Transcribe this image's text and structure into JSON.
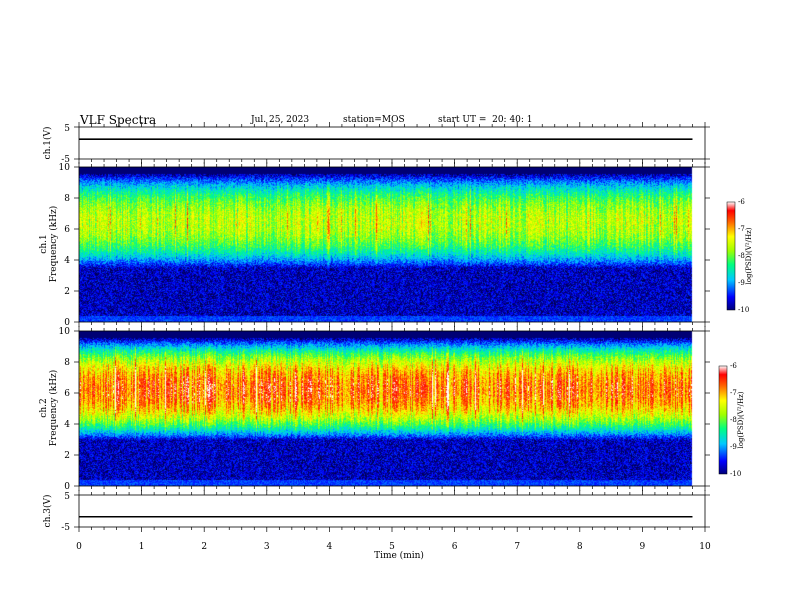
{
  "header": {
    "title": "VLF Spectra",
    "date": "Jul. 25, 2023",
    "station": "station=MOS",
    "start": "start UT =  20: 40: 1"
  },
  "chart_data": [
    {
      "type": "line",
      "ylabel": "ch.1(V)",
      "xlim": [
        0,
        10
      ],
      "ylim": [
        -5,
        5
      ],
      "yticks": [
        "5",
        "-5"
      ],
      "series": [
        {
          "x": [
            0,
            9.8
          ],
          "y": [
            1.2,
            1.2
          ]
        }
      ]
    },
    {
      "type": "heatmap",
      "ylabel_line1": "ch.1",
      "ylabel_line2": "Frequency (kHz)",
      "xlim": [
        0,
        10
      ],
      "ylim": [
        0,
        10
      ],
      "yticks": [
        "0",
        "2",
        "4",
        "6",
        "8",
        "10"
      ],
      "data_extent_x": [
        0,
        9.8
      ],
      "colorbar": {
        "label": "log(PSD)(V²/Hz)",
        "range": [
          -10,
          -6
        ],
        "ticks": [
          "-6",
          "-7",
          "-8",
          "-9",
          "-10"
        ]
      },
      "band_kHz": [
        3.5,
        9.5
      ],
      "peak_level": -7.8
    },
    {
      "type": "heatmap",
      "ylabel_line1": "ch.2",
      "ylabel_line2": "Frequency (kHz)",
      "xlim": [
        0,
        10
      ],
      "ylim": [
        0,
        10
      ],
      "yticks": [
        "0",
        "2",
        "4",
        "6",
        "8",
        "10"
      ],
      "data_extent_x": [
        0,
        9.8
      ],
      "colorbar": {
        "label": "log(PSD)(V²/Hz)",
        "range": [
          -10,
          -6
        ],
        "ticks": [
          "-6",
          "-7",
          "-8",
          "-9",
          "-10"
        ]
      },
      "band_kHz": [
        3,
        9.5
      ],
      "peak_level": -6.8
    },
    {
      "type": "line",
      "ylabel": "ch.3(V)",
      "xlabel": "Time (min)",
      "xlim": [
        0,
        10
      ],
      "ylim": [
        -5,
        5
      ],
      "yticks": [
        "5",
        "-5"
      ],
      "xticks": [
        "0",
        "1",
        "2",
        "3",
        "4",
        "5",
        "6",
        "7",
        "8",
        "9",
        "10"
      ],
      "series": [
        {
          "x": [
            0,
            9.8
          ],
          "y": [
            -1.8,
            -1.8
          ]
        }
      ]
    }
  ]
}
